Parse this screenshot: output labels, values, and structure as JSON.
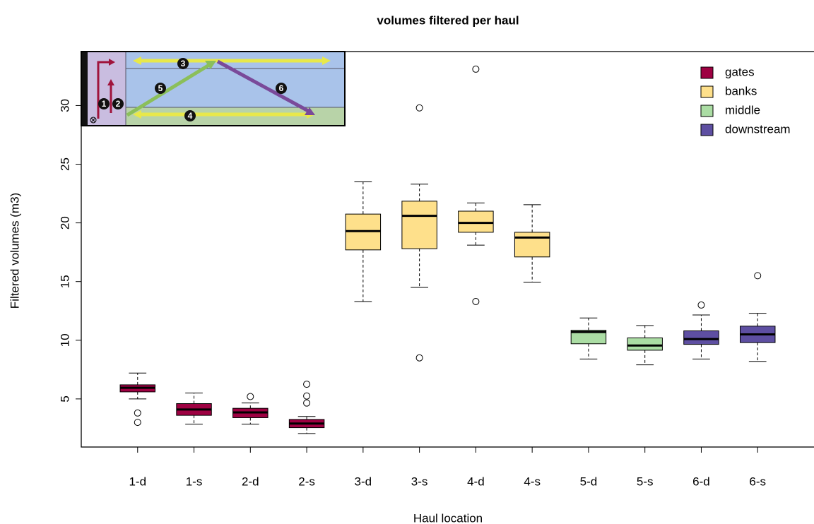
{
  "chart_data": {
    "type": "boxplot",
    "title": "volumes filtered per haul",
    "x_label": "Haul location",
    "y_label": "Filtered volumes (m3)",
    "ylim": [
      0.9,
      34.6
    ],
    "yticks": [
      5,
      10,
      15,
      20,
      25,
      30
    ],
    "legend_position": "top-right",
    "series": [
      {
        "name": "gates",
        "color": "#9e0142",
        "data": [
          {
            "label": "1-d",
            "whisker_low": 5.0,
            "q1": 5.6,
            "median": 5.95,
            "q3": 6.2,
            "whisker_high": 7.2,
            "outliers": [
              3.8,
              3.0
            ]
          },
          {
            "label": "1-s",
            "whisker_low": 2.85,
            "q1": 3.6,
            "median": 4.1,
            "q3": 4.6,
            "whisker_high": 5.5,
            "outliers": []
          },
          {
            "label": "2-d",
            "whisker_low": 2.85,
            "q1": 3.4,
            "median": 3.85,
            "q3": 4.2,
            "whisker_high": 4.65,
            "outliers": [
              5.2
            ]
          },
          {
            "label": "2-s",
            "whisker_low": 2.05,
            "q1": 2.55,
            "median": 2.9,
            "q3": 3.25,
            "whisker_high": 3.5,
            "outliers": [
              6.25,
              5.25,
              4.65
            ]
          }
        ]
      },
      {
        "name": "banks",
        "color": "#fee08b",
        "data": [
          {
            "label": "3-d",
            "whisker_low": 13.3,
            "q1": 17.7,
            "median": 19.3,
            "q3": 20.75,
            "whisker_high": 23.5,
            "outliers": []
          },
          {
            "label": "3-s",
            "whisker_low": 14.5,
            "q1": 17.8,
            "median": 20.6,
            "q3": 21.85,
            "whisker_high": 23.3,
            "outliers": [
              29.8,
              8.5
            ]
          },
          {
            "label": "4-d",
            "whisker_low": 18.1,
            "q1": 19.2,
            "median": 20.0,
            "q3": 21.0,
            "whisker_high": 21.7,
            "outliers": [
              33.1,
              13.3
            ]
          },
          {
            "label": "4-s",
            "whisker_low": 14.95,
            "q1": 17.1,
            "median": 18.75,
            "q3": 19.2,
            "whisker_high": 21.55,
            "outliers": []
          }
        ]
      },
      {
        "name": "middle",
        "color": "#abdda4",
        "data": [
          {
            "label": "5-d",
            "whisker_low": 8.4,
            "q1": 9.7,
            "median": 10.7,
            "q3": 10.85,
            "whisker_high": 11.9,
            "outliers": []
          },
          {
            "label": "5-s",
            "whisker_low": 7.9,
            "q1": 9.15,
            "median": 9.55,
            "q3": 10.2,
            "whisker_high": 11.25,
            "outliers": []
          }
        ]
      },
      {
        "name": "downstream",
        "color": "#5e4fa2",
        "data": [
          {
            "label": "6-d",
            "whisker_low": 8.4,
            "q1": 9.65,
            "median": 10.1,
            "q3": 10.8,
            "whisker_high": 12.15,
            "outliers": [
              13.0
            ]
          },
          {
            "label": "6-s",
            "whisker_low": 8.2,
            "q1": 9.8,
            "median": 10.5,
            "q3": 11.2,
            "whisker_high": 12.3,
            "outliers": [
              15.5
            ]
          }
        ]
      }
    ],
    "inset_labels": [
      "1",
      "2",
      "3",
      "4",
      "5",
      "6"
    ]
  }
}
